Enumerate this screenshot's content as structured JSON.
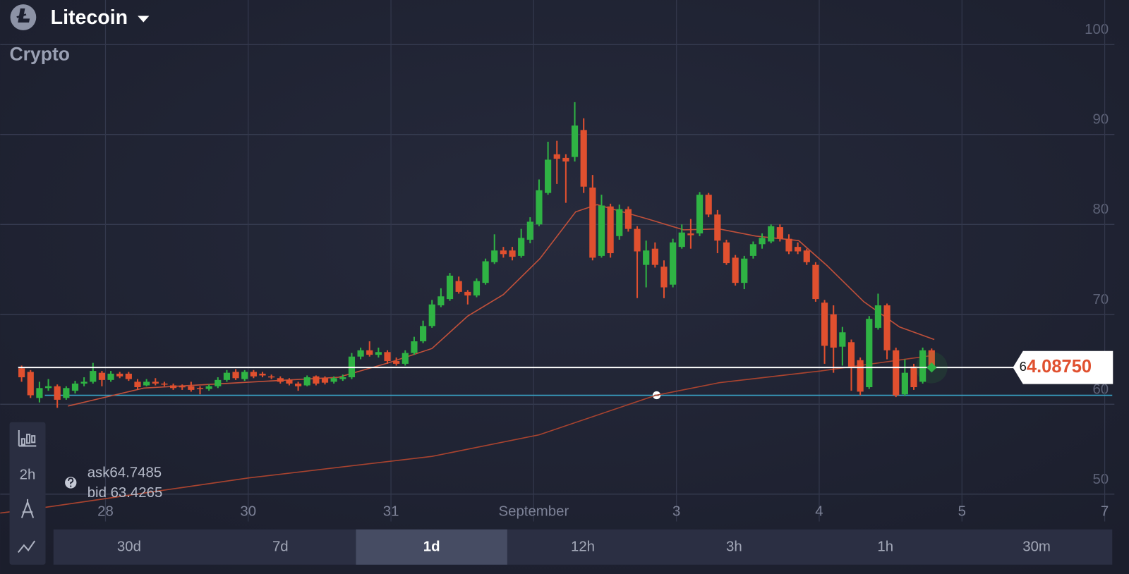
{
  "header": {
    "asset": "Litecoin",
    "category": "Crypto"
  },
  "chart_data": {
    "type": "candlestick",
    "open": [
      64.0,
      63.6,
      60.7,
      61.8,
      62.0,
      60.7,
      61.5,
      62.3,
      62.5,
      63.5,
      62.7,
      63.4,
      63.4,
      62.5,
      62.1,
      62.5,
      62.3,
      62.1,
      62.0,
      62.0,
      61.8,
      61.7,
      62.0,
      62.7,
      63.6,
      62.8,
      63.6,
      63.4,
      63.1,
      62.9,
      62.7,
      62.3,
      62.1,
      63.1,
      62.9,
      62.5,
      62.8,
      63.0,
      65.3,
      66.0,
      65.5,
      65.8,
      64.8,
      64.5,
      65.7,
      67.0,
      68.7,
      71.0,
      71.7,
      73.7,
      72.5,
      72.1,
      73.5,
      75.8,
      77.1,
      77.1,
      76.5,
      78.3,
      80.0,
      83.5,
      87.8,
      87.4,
      87.5,
      90.5,
      84.1,
      76.5,
      82.0,
      78.7,
      81.7,
      79.5,
      75.5,
      77.3,
      75.3,
      73.3,
      77.5,
      79.0,
      79.0,
      83.3,
      81.1,
      78.0,
      76.3,
      73.5,
      76.5,
      77.8,
      78.1,
      79.7,
      78.4,
      77.5,
      77.1,
      75.5,
      71.3,
      70.0,
      66.4,
      66.9,
      64.9,
      61.9,
      68.5,
      71.0,
      66.0,
      61.1,
      64.2,
      62.5,
      66.0
    ],
    "high": [
      64.3,
      63.8,
      62.5,
      62.8,
      62.2,
      62.0,
      62.6,
      63.0,
      64.6,
      63.7,
      63.7,
      63.6,
      63.6,
      62.8,
      62.8,
      62.9,
      62.5,
      62.3,
      62.2,
      62.5,
      62.0,
      62.2,
      63.0,
      63.8,
      63.9,
      63.8,
      63.8,
      63.6,
      63.3,
      63.1,
      62.9,
      62.5,
      63.2,
      63.2,
      63.1,
      63.1,
      63.3,
      65.7,
      66.3,
      67.0,
      66.3,
      66.0,
      65.2,
      66.0,
      67.5,
      69.3,
      71.6,
      72.9,
      74.6,
      74.2,
      72.7,
      74.0,
      76.2,
      78.9,
      77.5,
      77.5,
      79.5,
      80.8,
      85.0,
      89.2,
      89.3,
      87.8,
      93.6,
      91.8,
      85.5,
      83.3,
      82.3,
      82.2,
      82.0,
      79.8,
      78.2,
      78.0,
      76.0,
      78.4,
      80.0,
      80.6,
      83.6,
      83.5,
      81.6,
      78.3,
      76.6,
      76.5,
      78.1,
      79.0,
      80.0,
      80.0,
      78.9,
      78.0,
      77.3,
      75.8,
      71.6,
      71.0,
      68.6,
      67.2,
      65.2,
      69.8,
      72.3,
      71.2,
      66.3,
      65.0,
      64.5,
      66.3,
      66.2
    ],
    "low": [
      62.5,
      60.7,
      60.2,
      61.5,
      59.6,
      60.5,
      61.2,
      62.0,
      62.3,
      62.0,
      62.5,
      62.9,
      62.6,
      61.6,
      62.0,
      62.1,
      62.0,
      61.6,
      61.6,
      61.4,
      61.1,
      61.5,
      61.8,
      62.5,
      62.7,
      62.6,
      62.9,
      63.0,
      62.8,
      62.3,
      62.1,
      61.5,
      62.0,
      62.1,
      62.2,
      62.3,
      62.6,
      62.8,
      65.0,
      65.3,
      65.2,
      64.5,
      64.3,
      64.3,
      65.5,
      66.8,
      68.5,
      70.8,
      71.5,
      72.3,
      71.1,
      71.9,
      73.3,
      75.6,
      76.3,
      76.0,
      76.3,
      77.9,
      79.8,
      83.3,
      84.5,
      82.4,
      87.0,
      83.5,
      76.0,
      76.3,
      76.3,
      78.3,
      79.2,
      71.8,
      73.0,
      75.2,
      71.8,
      73.0,
      77.3,
      77.3,
      78.7,
      80.8,
      76.8,
      75.5,
      73.2,
      72.8,
      76.2,
      77.3,
      77.9,
      78.1,
      76.7,
      76.7,
      75.5,
      71.4,
      64.5,
      63.5,
      64.3,
      61.5,
      61.0,
      61.7,
      68.3,
      65.0,
      60.8,
      60.9,
      61.6,
      62.3,
      63.8
    ],
    "close": [
      63.0,
      61.0,
      61.8,
      62.0,
      60.5,
      61.8,
      62.3,
      62.5,
      63.7,
      62.7,
      63.4,
      63.1,
      62.8,
      61.9,
      62.5,
      62.3,
      62.2,
      61.8,
      61.9,
      61.6,
      61.7,
      62.0,
      62.7,
      63.5,
      62.9,
      63.6,
      63.1,
      63.2,
      63.0,
      62.5,
      62.3,
      62.0,
      63.0,
      62.3,
      62.4,
      62.9,
      63.0,
      65.3,
      66.0,
      65.5,
      65.8,
      64.8,
      64.5,
      65.7,
      67.0,
      68.7,
      71.1,
      72.0,
      74.3,
      72.5,
      72.1,
      73.7,
      75.9,
      77.1,
      76.7,
      76.4,
      78.5,
      80.3,
      83.8,
      87.2,
      87.3,
      87.0,
      91.0,
      84.2,
      76.3,
      82.1,
      76.8,
      81.7,
      79.5,
      77.0,
      77.1,
      75.5,
      73.0,
      78.0,
      79.1,
      78.8,
      83.3,
      81.1,
      78.2,
      75.7,
      73.5,
      76.2,
      77.8,
      78.5,
      79.8,
      78.4,
      77.0,
      77.0,
      75.8,
      71.7,
      66.5,
      66.3,
      68.0,
      64.2,
      61.4,
      69.5,
      71.0,
      66.0,
      61.0,
      63.5,
      61.9,
      66.0,
      64.0875
    ],
    "up_color": "#2fb344",
    "down_color": "#e0502f",
    "series": [
      {
        "type": "line",
        "color": "#c0503a",
        "x": [
          5.2,
          13.7,
          29.8,
          35.5,
          41.1,
          46,
          50,
          54,
          58.1,
          62.1,
          64.5,
          70.2,
          74.2,
          78.2,
          82.3,
          87.1,
          90.3,
          94.4,
          98.4,
          102.3
        ],
        "values": [
          59.8,
          61.8,
          62.7,
          63.0,
          64.6,
          66.2,
          69.8,
          72.2,
          76.2,
          81.4,
          82.2,
          80.6,
          79.4,
          79.5,
          78.7,
          78.2,
          75.4,
          71.4,
          68.6,
          67.2
        ]
      },
      {
        "type": "line",
        "color": "#a8432f",
        "x": [
          -2.4,
          2.4,
          25.4,
          46,
          58,
          71.1,
          78.2,
          89.5,
          101.9
        ],
        "values": [
          47.9,
          48.5,
          51.8,
          54.2,
          56.6,
          61.0,
          62.4,
          63.7,
          65.4
        ]
      }
    ],
    "ylim": [
      46,
      103
    ],
    "yticks": [
      50,
      60,
      70,
      80,
      90,
      100
    ],
    "xlim": [
      -2.4,
      124.1
    ],
    "xticks": [
      {
        "value": 9.4,
        "label": "28"
      },
      {
        "value": 25.4,
        "label": "30"
      },
      {
        "value": 41.4,
        "label": "31"
      },
      {
        "value": 57.4,
        "label": "September"
      },
      {
        "value": 73.4,
        "label": "3"
      },
      {
        "value": 89.4,
        "label": "4"
      },
      {
        "value": 105.4,
        "label": "5"
      },
      {
        "value": 121.4,
        "label": "7"
      }
    ],
    "grid": true,
    "current_price": {
      "value": 64.0875,
      "label": "64.08750"
    },
    "reference_line": 61.0
  },
  "quote": {
    "ask": "ask64.7485",
    "bid": "bid 63.4265"
  },
  "toolbar": {
    "interval": "2h"
  },
  "timeframes": {
    "options": [
      "30d",
      "7d",
      "1d",
      "12h",
      "3h",
      "1h",
      "30m"
    ],
    "selected": 2
  }
}
